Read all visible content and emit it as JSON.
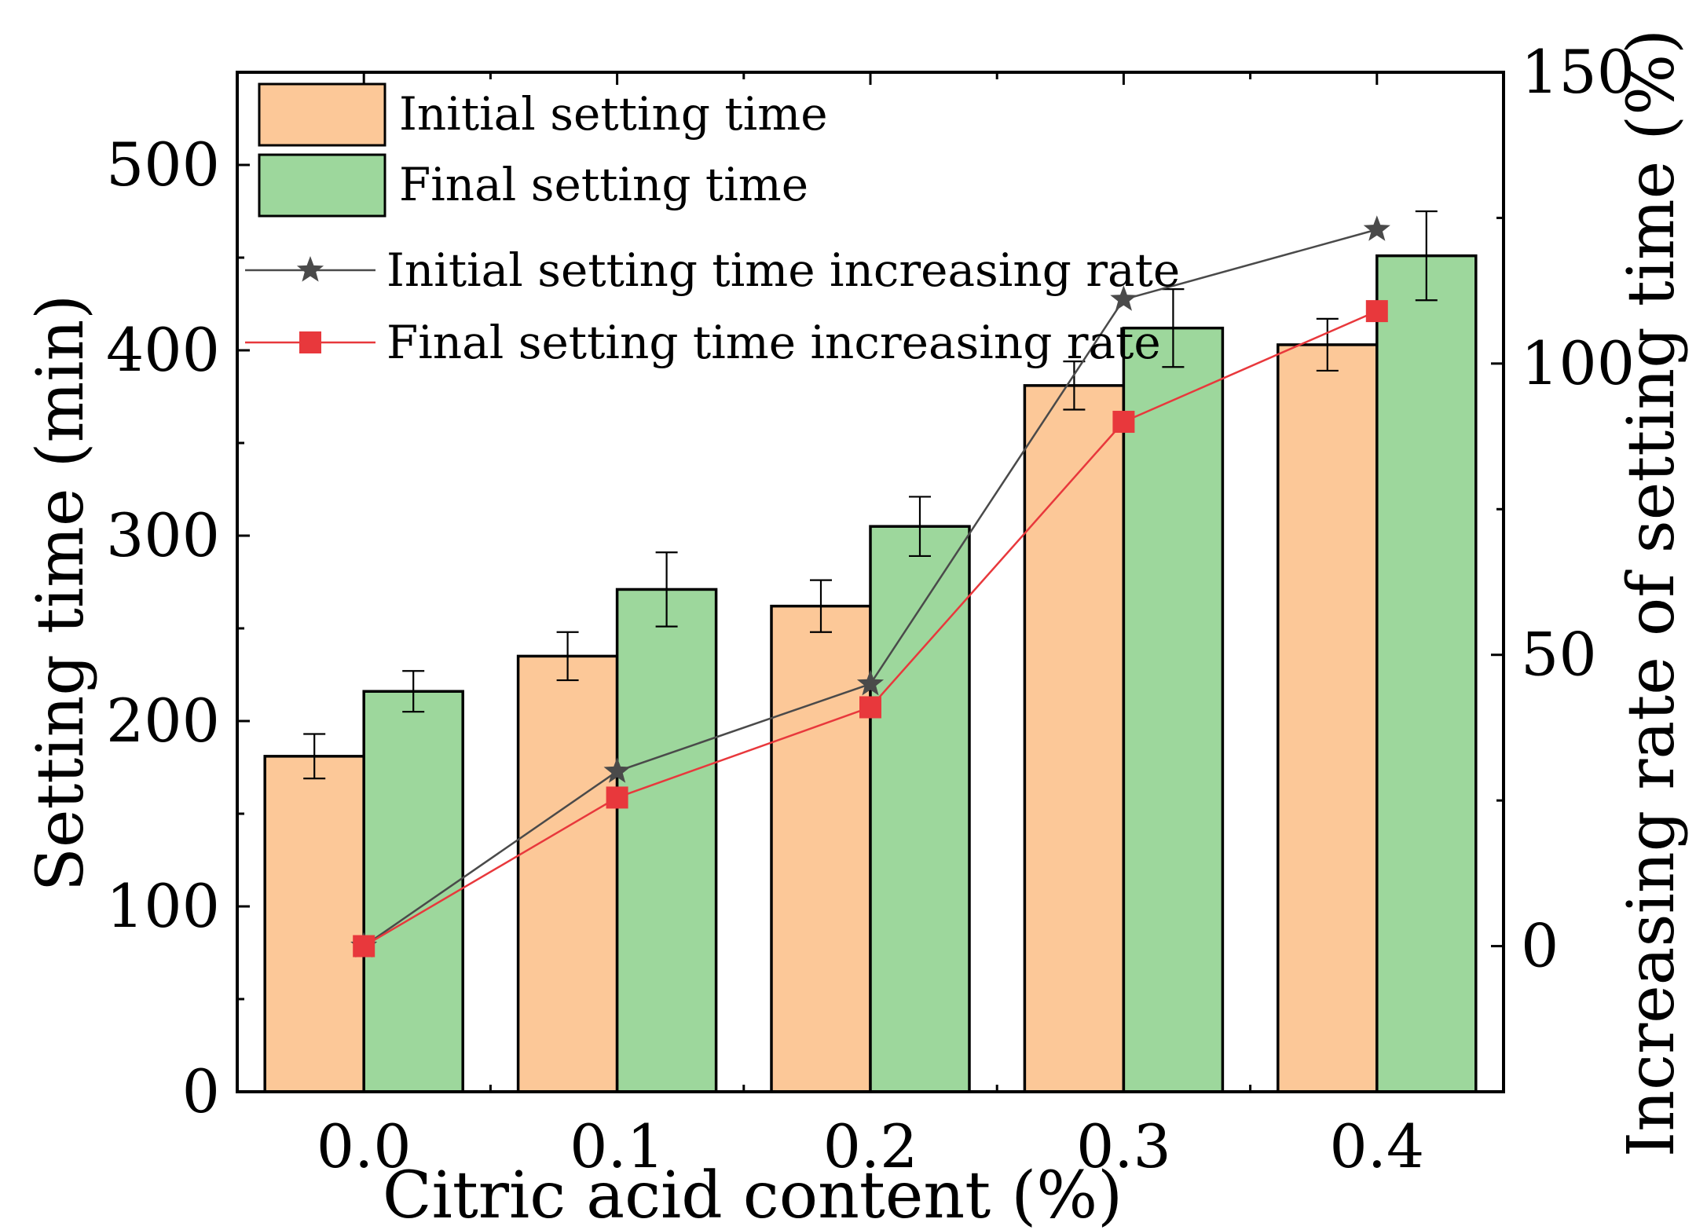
{
  "chart_data": {
    "type": "bar",
    "title": "",
    "xlabel": "Citric acid content (%)",
    "ylabel": "Setting time (min)",
    "y2label": "Increasing rate of setting time (%)",
    "categories": [
      "0.0",
      "0.1",
      "0.2",
      "0.3",
      "0.4"
    ],
    "ylim": [
      0,
      550
    ],
    "y2lim": [
      -25,
      150
    ],
    "yticks": [
      "0",
      "100",
      "200",
      "300",
      "400",
      "500"
    ],
    "y2ticks": [
      "0",
      "50",
      "100",
      "150"
    ],
    "y2tick_values": [
      0,
      50,
      100,
      150
    ],
    "grid": false,
    "legend_position": "top-left",
    "bar_series": [
      {
        "name": "Initial setting time",
        "color": "#fcc898",
        "values": [
          181,
          235,
          262,
          381,
          403
        ],
        "errors": [
          12,
          13,
          14,
          13,
          14
        ]
      },
      {
        "name": "Final setting time",
        "color": "#9dd79c",
        "values": [
          216,
          271,
          305,
          412,
          451
        ],
        "errors": [
          11,
          20,
          16,
          21,
          24
        ]
      }
    ],
    "line_series": [
      {
        "name": "Initial setting time increasing rate",
        "axis": "right",
        "color": "#4a4a4a",
        "marker": "star",
        "values": [
          0,
          30,
          45,
          111,
          123
        ]
      },
      {
        "name": "Final setting time increasing rate",
        "axis": "right",
        "color": "#e8383c",
        "marker": "square",
        "values": [
          0,
          25.5,
          41,
          90,
          109
        ]
      }
    ]
  }
}
